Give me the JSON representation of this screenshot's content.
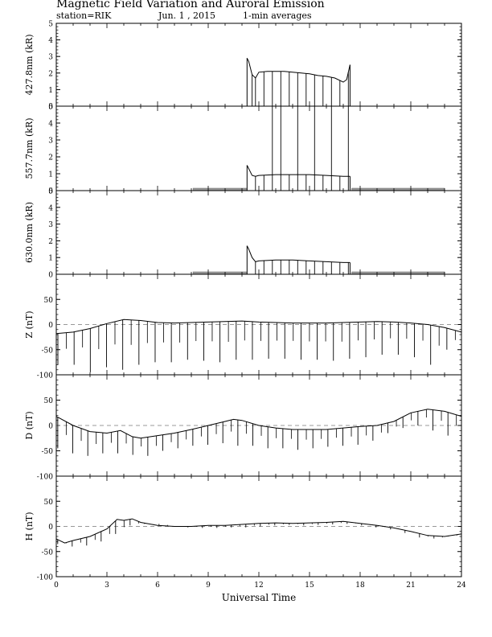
{
  "header": {
    "title": "Magnetic Field Variation and Auroral Emission",
    "station": "station=RIK",
    "date": "Jun. 1  , 2015",
    "averaging": "1-min averages"
  },
  "chart_data": [
    {
      "type": "line",
      "ylabel": "427.8nm (kR)",
      "ylim": [
        0,
        5
      ],
      "yticks": [
        0,
        1,
        2,
        3,
        4,
        5
      ],
      "xlim": [
        0,
        24
      ],
      "x": [
        11.3,
        11.4,
        11.6,
        11.8,
        12.0,
        12.5,
        13,
        13.5,
        14,
        14.5,
        15,
        15.5,
        16,
        16.5,
        17.0,
        17.2,
        17.4
      ],
      "y": [
        2.9,
        2.7,
        1.9,
        1.7,
        2.05,
        2.1,
        2.1,
        2.1,
        2.05,
        2.0,
        1.95,
        1.85,
        1.8,
        1.7,
        1.45,
        1.6,
        2.5
      ],
      "spike_times": [
        11.6,
        11.8,
        12.3,
        12.8,
        13.3,
        13.8,
        14.3,
        14.8,
        15.3,
        15.8,
        16.3,
        16.8,
        17.3
      ],
      "color": "#000000"
    },
    {
      "type": "line",
      "ylabel": "557.7nm (kR)",
      "ylim": [
        0,
        5
      ],
      "yticks": [
        0,
        1,
        2,
        3,
        4,
        5
      ],
      "xlim": [
        0,
        24
      ],
      "x": [
        11.3,
        11.4,
        11.6,
        11.8,
        12.0,
        13,
        14,
        15,
        16,
        17,
        17.4
      ],
      "y": [
        1.5,
        1.3,
        0.9,
        0.85,
        0.9,
        0.95,
        0.95,
        0.95,
        0.9,
        0.85,
        0.85
      ],
      "spike_times": [
        11.8,
        12.3,
        12.8,
        13.3,
        13.8,
        14.3,
        14.8,
        15.3,
        15.8,
        16.3,
        16.8,
        17.3
      ],
      "tall_spike_times": [
        12.8,
        13.3,
        14.3,
        15.3,
        16.3,
        17.3
      ],
      "no_data_bands": [
        [
          8.1,
          11.3
        ],
        [
          17.5,
          23.0
        ]
      ],
      "color": "#000000"
    },
    {
      "type": "line",
      "ylabel": "630.0nm (kR)",
      "ylim": [
        0,
        5
      ],
      "yticks": [
        0,
        1,
        2,
        3,
        4,
        5
      ],
      "xlim": [
        0,
        24
      ],
      "x": [
        11.3,
        11.4,
        11.6,
        11.8,
        12.0,
        13,
        14,
        15,
        16,
        17,
        17.4
      ],
      "y": [
        1.7,
        1.5,
        1.0,
        0.75,
        0.8,
        0.85,
        0.85,
        0.8,
        0.75,
        0.7,
        0.7
      ],
      "spike_times": [
        11.8,
        12.3,
        12.8,
        13.3,
        13.8,
        14.3,
        14.8,
        15.3,
        15.8,
        16.3,
        16.8,
        17.3
      ],
      "no_data_bands": [
        [
          8.1,
          11.3
        ],
        [
          17.5,
          23.0
        ]
      ],
      "color": "#000000"
    },
    {
      "type": "line",
      "ylabel": "Z (nT)",
      "ylim": [
        -100,
        100
      ],
      "yticks": [
        -100,
        -50,
        0,
        50
      ],
      "xlim": [
        0,
        24
      ],
      "baseline": 0,
      "x": [
        0,
        1,
        2,
        3,
        4,
        5,
        6,
        7,
        8,
        9,
        10,
        11,
        12,
        13,
        14,
        15,
        16,
        17,
        18,
        19,
        20,
        21,
        22,
        23,
        24
      ],
      "y": [
        -18,
        -15,
        -8,
        2,
        10,
        8,
        4,
        3,
        4,
        5,
        6,
        7,
        5,
        4,
        3,
        3,
        3,
        4,
        5,
        6,
        5,
        3,
        0,
        -6,
        -15
      ],
      "spike_depth": [
        -80,
        -80,
        -95,
        -85,
        -90,
        -80,
        -75,
        -75,
        -70,
        -72,
        -75,
        -70,
        -70,
        -68,
        -68,
        -70,
        -70,
        -72,
        -68,
        -65,
        -60,
        -60,
        -65,
        -80,
        -50
      ],
      "color": "#000000"
    },
    {
      "type": "line",
      "ylabel": "D (nT)",
      "ylim": [
        -100,
        100
      ],
      "yticks": [
        -100,
        -50,
        0,
        50
      ],
      "xlim": [
        0,
        24
      ],
      "baseline": 0,
      "x": [
        0,
        1,
        2,
        3,
        3.8,
        4.5,
        5,
        6,
        7,
        8,
        9,
        10,
        10.5,
        11,
        12,
        13,
        14,
        15,
        16,
        17,
        18,
        19,
        20,
        21,
        22,
        23,
        24
      ],
      "y": [
        18,
        0,
        -12,
        -15,
        -10,
        -22,
        -25,
        -20,
        -15,
        -8,
        0,
        8,
        12,
        10,
        0,
        -5,
        -8,
        -8,
        -8,
        -5,
        -2,
        0,
        8,
        25,
        32,
        28,
        18
      ],
      "spike_depth": [
        -45,
        -55,
        -60,
        -55,
        -55,
        -58,
        -60,
        -50,
        -45,
        -40,
        -38,
        -35,
        -40,
        -40,
        -45,
        -45,
        -48,
        -45,
        -42,
        -40,
        -38,
        -30,
        -15,
        -5,
        0,
        -10,
        -20
      ],
      "color": "#000000"
    },
    {
      "type": "line",
      "ylabel": "H (nT)",
      "ylim": [
        -100,
        100
      ],
      "yticks": [
        -100,
        -50,
        0,
        50
      ],
      "xlim": [
        0,
        24
      ],
      "baseline": 0,
      "x": [
        0,
        0.5,
        1,
        2,
        3,
        3.6,
        4,
        4.5,
        5,
        6,
        7,
        8,
        9,
        10,
        11,
        12,
        13,
        14,
        15,
        16,
        17,
        18,
        19,
        20,
        21,
        22,
        23,
        24
      ],
      "y": [
        -25,
        -33,
        -28,
        -20,
        -5,
        14,
        12,
        15,
        8,
        2,
        0,
        0,
        2,
        2,
        4,
        6,
        7,
        6,
        7,
        8,
        10,
        6,
        2,
        -3,
        -10,
        -18,
        -20,
        -15
      ],
      "spike_depth": [
        -35,
        -40,
        -38,
        -30,
        -15,
        2,
        5,
        5,
        0,
        -2,
        -3,
        -3,
        -2,
        -2,
        0,
        2,
        3,
        2,
        3,
        4,
        5,
        2,
        -2,
        -6,
        -13,
        -22,
        -24,
        -20
      ],
      "color": "#000000"
    }
  ],
  "xaxis": {
    "label": "Universal Time",
    "ticks": [
      0,
      3,
      6,
      9,
      12,
      15,
      18,
      21,
      24
    ],
    "xlim": [
      0,
      24
    ]
  }
}
